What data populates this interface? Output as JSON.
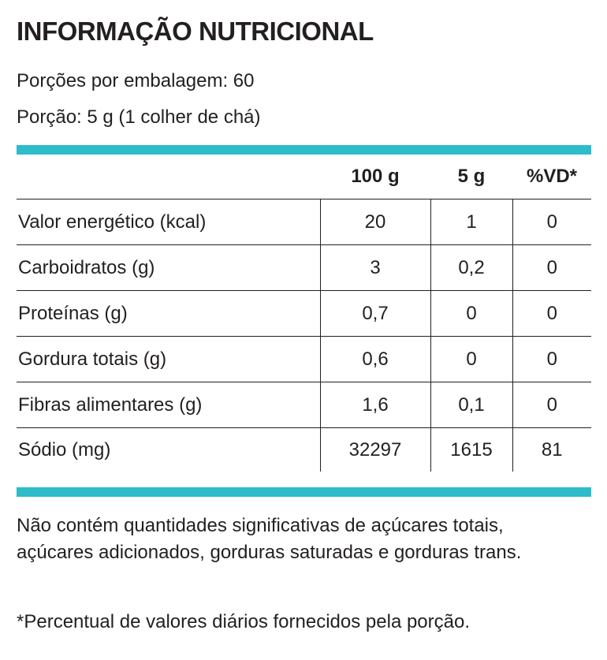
{
  "colors": {
    "accent_rule": "#2dbcc9",
    "text": "#231f20"
  },
  "title": "INFORMAÇÃO NUTRICIONAL",
  "servings_per_package": "Porções por embalagem: 60",
  "serving_size": "Porção: 5 g (1 colher de chá)",
  "table": {
    "headers": [
      "",
      "100 g",
      "5 g",
      "%VD*"
    ],
    "rows": [
      {
        "label": "Valor energético (kcal)",
        "per100": "20",
        "perServing": "1",
        "vd": "0"
      },
      {
        "label": "Carboidratos (g)",
        "per100": "3",
        "perServing": "0,2",
        "vd": "0"
      },
      {
        "label": "Proteínas (g)",
        "per100": "0,7",
        "perServing": "0",
        "vd": "0"
      },
      {
        "label": "Gordura totais (g)",
        "per100": "0,6",
        "perServing": "0",
        "vd": "0"
      },
      {
        "label": "Fibras alimentares (g)",
        "per100": "1,6",
        "perServing": "0,1",
        "vd": "0"
      },
      {
        "label": "Sódio (mg)",
        "per100": "32297",
        "perServing": "1615",
        "vd": "81"
      }
    ]
  },
  "notes": {
    "not_significant": "Não contém quantidades significativas de açúcares totais, açúcares adicionados, gorduras saturadas e gorduras trans.",
    "footnote": "*Percentual de valores diários fornecidos pela porção."
  }
}
